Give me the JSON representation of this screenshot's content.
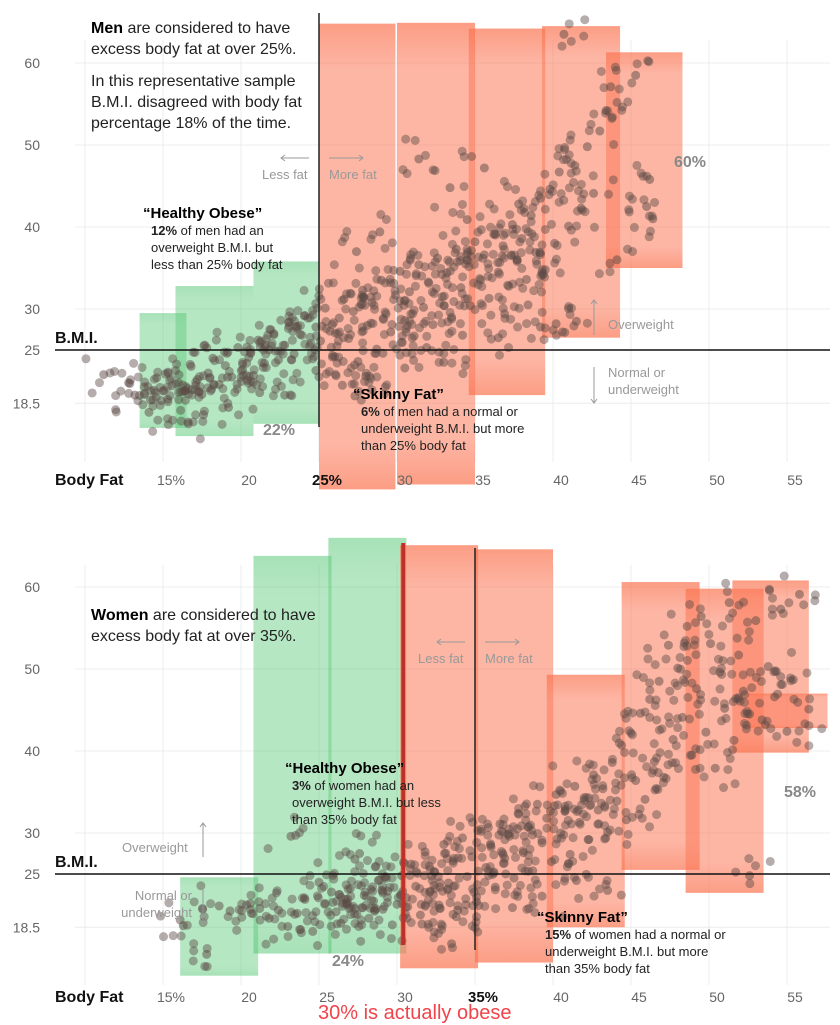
{
  "chart_data": [
    {
      "type": "scatter",
      "title": "Men",
      "intro_bold": "Men",
      "intro_rest": " are considered to have excess body fat at over 25%.",
      "intro2": "In this representative sample B.M.I. disagreed with body fat percentage 18% of the time.",
      "xlabel": "Body Fat",
      "ylabel": "B.M.I.",
      "xlim": [
        10,
        57.5
      ],
      "ylim": [
        11,
        66
      ],
      "x_ticks": [
        {
          "v": 15,
          "label": "15%"
        },
        {
          "v": 20,
          "label": "20"
        },
        {
          "v": 25,
          "label": "25%",
          "bold": true
        },
        {
          "v": 30,
          "label": "30"
        },
        {
          "v": 35,
          "label": "35"
        },
        {
          "v": 40,
          "label": "40"
        },
        {
          "v": 45,
          "label": "45"
        },
        {
          "v": 50,
          "label": "50"
        },
        {
          "v": 55,
          "label": "55"
        }
      ],
      "y_ticks": [
        {
          "v": 60,
          "label": "60"
        },
        {
          "v": 50,
          "label": "50"
        },
        {
          "v": 40,
          "label": "40"
        },
        {
          "v": 30,
          "label": "30"
        },
        {
          "v": 25,
          "label": "25"
        },
        {
          "v": 18.5,
          "label": "18.5"
        }
      ],
      "threshold_x": 25,
      "threshold_y": 25,
      "less_fat": "Less fat",
      "more_fat": "More fat",
      "overweight": "Overweight",
      "normal": "Normal or underweight",
      "healthy_obese": {
        "title": "“Healthy Obese”",
        "pct": "12%",
        "text": " of men had an overweight B.M.I. but less than 25% body fat"
      },
      "skinny_fat": {
        "title": "“Skinny Fat”",
        "pct": "6%",
        "text": " of men had a normal or underweight B.M.I. but more than 25% body fat"
      },
      "green_pct": "22%",
      "red_pct": "60%",
      "green_bars": [
        [
          13.5,
          16.5,
          29.5,
          15.5
        ],
        [
          15.8,
          20.8,
          32.8,
          14.5
        ],
        [
          20.8,
          25,
          35.8,
          16
        ]
      ],
      "red_bars": [
        [
          25,
          29.9,
          64.8,
          8
        ],
        [
          30,
          35,
          64.9,
          8.6
        ],
        [
          34.6,
          39.5,
          64.2,
          19.5
        ],
        [
          39.3,
          44.3,
          64.5,
          26.5
        ],
        [
          43.4,
          48.3,
          61.3,
          35
        ]
      ],
      "points": [
        [
          11.2,
          22
        ],
        [
          12.8,
          21
        ],
        [
          13.2,
          19.5
        ],
        [
          13.8,
          20.5
        ],
        [
          14.2,
          18.9
        ],
        [
          14.6,
          21.6
        ],
        [
          15,
          20
        ],
        [
          15.3,
          19
        ],
        [
          15.8,
          22.5
        ],
        [
          16,
          21
        ],
        [
          16.4,
          20
        ],
        [
          16.8,
          23
        ],
        [
          17.2,
          21.4
        ],
        [
          17.5,
          19.6
        ],
        [
          17.9,
          22.2
        ],
        [
          18.2,
          24
        ],
        [
          18.6,
          20.8
        ],
        [
          19,
          23.1
        ],
        [
          19.4,
          21.7
        ],
        [
          19.8,
          25.3
        ],
        [
          20.1,
          22.6
        ],
        [
          20.5,
          24.1
        ],
        [
          20.8,
          21.9
        ],
        [
          21.1,
          26.2
        ],
        [
          21.5,
          23.4
        ],
        [
          21.8,
          25
        ],
        [
          22.1,
          27
        ],
        [
          22.4,
          23.8
        ],
        [
          22.8,
          25.6
        ],
        [
          23.1,
          28.4
        ],
        [
          23.4,
          24.5
        ],
        [
          23.8,
          26.9
        ],
        [
          24.1,
          29.2
        ],
        [
          24.4,
          25.5
        ],
        [
          24.8,
          27.8
        ],
        [
          25.1,
          26.1
        ],
        [
          25.4,
          30.1
        ],
        [
          25.7,
          27.3
        ],
        [
          26,
          24.2
        ],
        [
          26.3,
          28.9
        ],
        [
          26.6,
          31.2
        ],
        [
          26.9,
          26.4
        ],
        [
          27.2,
          29.7
        ],
        [
          27.5,
          23.6
        ],
        [
          27.8,
          32.3
        ],
        [
          28.1,
          28
        ],
        [
          28.4,
          30.8
        ],
        [
          28.7,
          25.1
        ],
        [
          29,
          33.5
        ],
        [
          29.3,
          29.4
        ],
        [
          29.6,
          27.2
        ],
        [
          29.9,
          31.7
        ],
        [
          30.2,
          34.6
        ],
        [
          30.5,
          28.6
        ],
        [
          30.8,
          32.1
        ],
        [
          31.1,
          26.7
        ],
        [
          31.4,
          35.4
        ],
        [
          31.7,
          30.2
        ],
        [
          32,
          33.3
        ],
        [
          32.3,
          28.1
        ],
        [
          32.6,
          36.2
        ],
        [
          32.9,
          31.5
        ],
        [
          33.2,
          34.4
        ],
        [
          33.5,
          29
        ],
        [
          33.8,
          37.3
        ],
        [
          34.1,
          32.6
        ],
        [
          34.4,
          35.5
        ],
        [
          34.7,
          30.4
        ],
        [
          35,
          38.2
        ],
        [
          35.3,
          33.7
        ],
        [
          35.6,
          36.6
        ],
        [
          35.9,
          31.3
        ],
        [
          36.2,
          39.1
        ],
        [
          36.5,
          34.5
        ],
        [
          36.8,
          37.7
        ],
        [
          37.1,
          32.9
        ],
        [
          37.4,
          40.3
        ],
        [
          37.7,
          35.8
        ],
        [
          38,
          38.6
        ],
        [
          38.3,
          33.6
        ],
        [
          38.6,
          41.4
        ],
        [
          38.9,
          36.9
        ],
        [
          39.2,
          43.5
        ],
        [
          39.5,
          34.8
        ],
        [
          39.8,
          44.6
        ],
        [
          40.1,
          38
        ],
        [
          40.4,
          46.7
        ],
        [
          40.7,
          63.5
        ],
        [
          41,
          40.1
        ],
        [
          41.4,
          47.5
        ],
        [
          41.8,
          42.3
        ],
        [
          42.2,
          49.8
        ],
        [
          42.6,
          44.1
        ],
        [
          43,
          51.7
        ],
        [
          43.4,
          54.2
        ],
        [
          43.7,
          57.1
        ],
        [
          44.1,
          36
        ],
        [
          45.3,
          58.5
        ],
        [
          46.2,
          45.8
        ],
        [
          46,
          42.5
        ],
        [
          46.4,
          41
        ],
        [
          41.5,
          28.5
        ],
        [
          40.2,
          28.2
        ],
        [
          39.2,
          27.8
        ],
        [
          36.5,
          26.5
        ],
        [
          33,
          23.5
        ],
        [
          30.5,
          22.8
        ],
        [
          28,
          21.8
        ],
        [
          26.5,
          20.7
        ],
        [
          27.3,
          19.4
        ],
        [
          24.8,
          22.5
        ],
        [
          22.8,
          19.5
        ],
        [
          21.2,
          19.8
        ],
        [
          19.2,
          18
        ],
        [
          17.6,
          17.1
        ],
        [
          16.6,
          16.2
        ],
        [
          14.1,
          17.4
        ],
        [
          29.1,
          24.6
        ],
        [
          31.9,
          25.3
        ],
        [
          34.2,
          26.8
        ],
        [
          36.9,
          29.4
        ],
        [
          38.4,
          30.5
        ],
        [
          37.8,
          42.8
        ],
        [
          35.6,
          47.2
        ],
        [
          31.4,
          48.3
        ],
        [
          33.4,
          44.8
        ],
        [
          28.9,
          39.4
        ],
        [
          27.4,
          37
        ],
        [
          34.5,
          40.9
        ]
      ]
    },
    {
      "type": "scatter",
      "title": "Women",
      "intro_bold": "Women",
      "intro_rest": " are considered to have excess body fat at over 35%.",
      "xlabel": "Body Fat",
      "ylabel": "B.M.I.",
      "xlim": [
        10,
        57.5
      ],
      "ylim": [
        11,
        66
      ],
      "x_ticks": [
        {
          "v": 15,
          "label": "15%"
        },
        {
          "v": 20,
          "label": "20"
        },
        {
          "v": 25,
          "label": "25"
        },
        {
          "v": 30,
          "label": "30"
        },
        {
          "v": 35,
          "label": "35%",
          "bold": true
        },
        {
          "v": 40,
          "label": "40"
        },
        {
          "v": 45,
          "label": "45"
        },
        {
          "v": 50,
          "label": "50"
        },
        {
          "v": 55,
          "label": "55"
        }
      ],
      "y_ticks": [
        {
          "v": 60,
          "label": "60"
        },
        {
          "v": 50,
          "label": "50"
        },
        {
          "v": 40,
          "label": "40"
        },
        {
          "v": 30,
          "label": "30"
        },
        {
          "v": 25,
          "label": "25"
        },
        {
          "v": 18.5,
          "label": "18.5"
        }
      ],
      "threshold_x": 35,
      "threshold_y": 25,
      "alt_threshold_x": 30.4,
      "alt_threshold_label": "30% is actually obese",
      "alt_threshold_color": "#f0434a",
      "less_fat": "Less fat",
      "more_fat": "More fat",
      "overweight": "Overweight",
      "normal": "Normal or underweight",
      "healthy_obese": {
        "title": "“Healthy Obese”",
        "pct": "3%",
        "text": " of women had an overweight B.M.I. but less than 35% body fat"
      },
      "skinny_fat": {
        "title": "“Skinny Fat”",
        "pct": "15%",
        "text": " of women had a normal or underweight B.M.I. but more than 35% body fat"
      },
      "green_pct": "24%",
      "red_pct": "58%",
      "green_bars": [
        [
          16.1,
          21.1,
          24.6,
          12.6
        ],
        [
          20.8,
          25.8,
          63.8,
          15.3
        ],
        [
          25.6,
          30.6,
          66,
          15.3
        ]
      ],
      "red_bars": [
        [
          30.2,
          35.2,
          65.1,
          13.5
        ],
        [
          35,
          40,
          64.6,
          14.2
        ],
        [
          39.6,
          44.6,
          49.3,
          18.5
        ],
        [
          44.4,
          49.4,
          60.6,
          25.5
        ],
        [
          48.5,
          53.5,
          59.8,
          22.7
        ],
        [
          51.5,
          56.4,
          60.8,
          39.8
        ],
        [
          52.5,
          57.6,
          47,
          42.8
        ]
      ],
      "points": [
        [
          16.1,
          19.4
        ],
        [
          16.3,
          18.7
        ],
        [
          17.8,
          15.2
        ],
        [
          18.6,
          21.1
        ],
        [
          19.3,
          20.5
        ],
        [
          20.6,
          21.4
        ],
        [
          21.2,
          20.8
        ],
        [
          21.8,
          19.6
        ],
        [
          22.4,
          20.6
        ],
        [
          23,
          18.6
        ],
        [
          23.6,
          20.2
        ],
        [
          24.1,
          21.9
        ],
        [
          24.6,
          18
        ],
        [
          25,
          24
        ],
        [
          25.4,
          21.4
        ],
        [
          25.8,
          22.8
        ],
        [
          26.1,
          20.4
        ],
        [
          26.4,
          19
        ],
        [
          26.7,
          21.9
        ],
        [
          27,
          23.2
        ],
        [
          27.3,
          20.1
        ],
        [
          27.6,
          27.5
        ],
        [
          27.9,
          22.4
        ],
        [
          28.2,
          19.6
        ],
        [
          28.5,
          21.7
        ],
        [
          28.8,
          24.2
        ],
        [
          29.1,
          20.7
        ],
        [
          29.4,
          22.9
        ],
        [
          29.7,
          18.8
        ],
        [
          30,
          21.3
        ],
        [
          30.3,
          24.8
        ],
        [
          30.6,
          22.1
        ],
        [
          30.9,
          26.2
        ],
        [
          31.2,
          23.5
        ],
        [
          31.5,
          20
        ],
        [
          31.8,
          27.7
        ],
        [
          32.1,
          22.8
        ],
        [
          32.4,
          25.3
        ],
        [
          32.7,
          21.2
        ],
        [
          33,
          28.6
        ],
        [
          33.3,
          23.9
        ],
        [
          33.6,
          26.6
        ],
        [
          33.9,
          20.6
        ],
        [
          34.2,
          29.4
        ],
        [
          34.5,
          24.7
        ],
        [
          34.8,
          27.1
        ],
        [
          35.1,
          22.2
        ],
        [
          35.4,
          30.2
        ],
        [
          35.7,
          25.8
        ],
        [
          36,
          28.5
        ],
        [
          36.3,
          23.4
        ],
        [
          36.6,
          31.1
        ],
        [
          36.9,
          26.9
        ],
        [
          37.2,
          29.6
        ],
        [
          37.5,
          24.5
        ],
        [
          37.8,
          32.3
        ],
        [
          38.1,
          27.6
        ],
        [
          38.4,
          30.7
        ],
        [
          38.7,
          25.4
        ],
        [
          39,
          33.5
        ],
        [
          39.3,
          28.8
        ],
        [
          39.6,
          31.8
        ],
        [
          39.9,
          26.5
        ],
        [
          40.2,
          34.7
        ],
        [
          40.5,
          30
        ],
        [
          40.8,
          32.9
        ],
        [
          41.1,
          27.4
        ],
        [
          41.4,
          35.7
        ],
        [
          41.7,
          31.3
        ],
        [
          42,
          34
        ],
        [
          42.3,
          29.2
        ],
        [
          42.6,
          37.1
        ],
        [
          42.9,
          32.8
        ],
        [
          43.2,
          35.4
        ],
        [
          43.5,
          30.1
        ],
        [
          43.8,
          38.6
        ],
        [
          44.1,
          33.9
        ],
        [
          44.4,
          40.7
        ],
        [
          44.7,
          31.6
        ],
        [
          45,
          42.2
        ],
        [
          45.3,
          36.4
        ],
        [
          45.6,
          44.6
        ],
        [
          45.9,
          34.1
        ],
        [
          46.2,
          46.3
        ],
        [
          46.5,
          38.7
        ],
        [
          46.8,
          48.5
        ],
        [
          47.1,
          36.8
        ],
        [
          47.4,
          52.9
        ],
        [
          47.7,
          41.4
        ],
        [
          48,
          50.1
        ],
        [
          48.3,
          44.1
        ],
        [
          48.6,
          55.2
        ],
        [
          48.9,
          39.5
        ],
        [
          49.2,
          47.6
        ],
        [
          49.5,
          56.4
        ],
        [
          49.8,
          42.3
        ],
        [
          50.1,
          53.1
        ],
        [
          50.4,
          37.9
        ],
        [
          50.7,
          49.6
        ],
        [
          51,
          45.2
        ],
        [
          51.3,
          58.1
        ],
        [
          51.6,
          41.3
        ],
        [
          51.9,
          51.7
        ],
        [
          52.2,
          47.3
        ],
        [
          52.6,
          44.5
        ],
        [
          53,
          55.9
        ],
        [
          53.4,
          43.8
        ],
        [
          53.8,
          50.3
        ],
        [
          54.2,
          46.6
        ],
        [
          54.6,
          57.3
        ],
        [
          55,
          42.4
        ],
        [
          55.4,
          48.7
        ],
        [
          55.8,
          59.1
        ],
        [
          56.4,
          45.1
        ],
        [
          52.6,
          24.8
        ],
        [
          43.5,
          23
        ],
        [
          41.5,
          24.2
        ],
        [
          39.3,
          22.3
        ],
        [
          37.4,
          20.9
        ],
        [
          35.1,
          21.6
        ],
        [
          33.8,
          19.8
        ],
        [
          33.5,
          16.5
        ],
        [
          31.6,
          18.9
        ],
        [
          29.2,
          24.6
        ],
        [
          27.3,
          26.8
        ],
        [
          23.2,
          29.6
        ]
      ]
    }
  ],
  "colors": {
    "green": "#5cc97a",
    "red": "#fb7a5a",
    "dot": "#5c4a44",
    "alt_threshold": "#c0302a"
  }
}
